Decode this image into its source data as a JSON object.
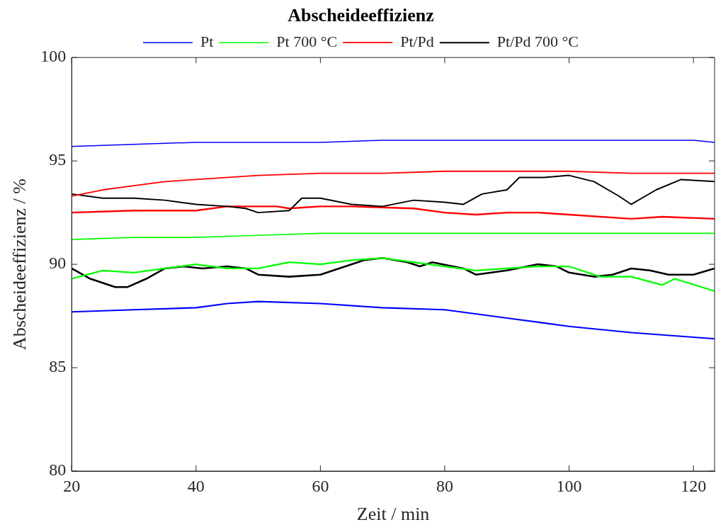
{
  "chart_data": {
    "type": "line",
    "title": "Abscheideeffizienz",
    "xlabel": "Zeit / min",
    "ylabel": "Abscheideeffizienz / %",
    "xlim": [
      20,
      123.4
    ],
    "xticks": [
      20,
      40,
      60,
      80,
      100,
      120
    ],
    "ylim": [
      80,
      100
    ],
    "yticks": [
      80,
      85,
      90,
      95,
      100
    ],
    "grid": false,
    "legend": "top",
    "marker": "none",
    "line_style": "solid",
    "series": [
      {
        "name": "Pt",
        "color": "#0000ff",
        "x": [
          20,
          30,
          40,
          50,
          60,
          70,
          80,
          90,
          100,
          110,
          120,
          123.4
        ],
        "values": [
          95.7,
          95.8,
          95.9,
          95.9,
          95.9,
          96.0,
          96.0,
          96.0,
          96.0,
          96.0,
          96.0,
          95.9
        ]
      },
      {
        "name": "Pt 700 °C",
        "color": "#00ff00",
        "x": [
          20,
          30,
          40,
          50,
          60,
          70,
          80,
          90,
          100,
          110,
          123.4
        ],
        "values": [
          91.2,
          91.3,
          91.3,
          91.4,
          91.5,
          91.5,
          91.5,
          91.5,
          91.5,
          91.5,
          91.5
        ]
      },
      {
        "name": "Pt/Pd",
        "color": "#ff0000",
        "x": [
          20,
          25,
          30,
          35,
          40,
          50,
          60,
          70,
          80,
          90,
          100,
          110,
          123.4
        ],
        "values": [
          93.3,
          93.6,
          93.8,
          94.0,
          94.1,
          94.3,
          94.4,
          94.4,
          94.5,
          94.5,
          94.5,
          94.4,
          94.4
        ]
      },
      {
        "name": "Pt/Pd 700 °C",
        "color": "#000000",
        "x": [
          20,
          25,
          30,
          35,
          40,
          45,
          48,
          50,
          55,
          57,
          60,
          65,
          70,
          75,
          80,
          83,
          86,
          90,
          92,
          96,
          100,
          104,
          108,
          110,
          114,
          118,
          123.4
        ],
        "values": [
          93.4,
          93.2,
          93.2,
          93.1,
          92.9,
          92.8,
          92.7,
          92.5,
          92.6,
          93.2,
          93.2,
          92.9,
          92.8,
          93.1,
          93.0,
          92.9,
          93.4,
          93.6,
          94.2,
          94.2,
          94.3,
          94.0,
          93.3,
          92.9,
          93.6,
          94.1,
          94.0
        ]
      },
      {
        "color": "#0000ff",
        "x": [
          20,
          30,
          40,
          45,
          50,
          60,
          70,
          80,
          90,
          100,
          110,
          123.4
        ],
        "values": [
          87.7,
          87.8,
          87.9,
          88.1,
          88.2,
          88.1,
          87.9,
          87.8,
          87.4,
          87.0,
          86.7,
          86.4
        ]
      },
      {
        "color": "#00ff00",
        "x": [
          20,
          25,
          30,
          35,
          40,
          45,
          50,
          55,
          60,
          65,
          70,
          75,
          80,
          85,
          90,
          95,
          100,
          105,
          110,
          115,
          117,
          123.4
        ],
        "values": [
          89.3,
          89.7,
          89.6,
          89.8,
          90.0,
          89.8,
          89.8,
          90.1,
          90.0,
          90.2,
          90.3,
          90.1,
          89.9,
          89.7,
          89.8,
          89.9,
          89.9,
          89.4,
          89.4,
          89.0,
          89.3,
          88.7
        ]
      },
      {
        "color": "#ff0000",
        "x": [
          20,
          30,
          40,
          45,
          53,
          55,
          60,
          65,
          75,
          80,
          85,
          90,
          95,
          100,
          110,
          115,
          123.4
        ],
        "values": [
          92.5,
          92.6,
          92.6,
          92.8,
          92.8,
          92.7,
          92.8,
          92.8,
          92.7,
          92.5,
          92.4,
          92.5,
          92.5,
          92.4,
          92.2,
          92.3,
          92.2
        ]
      },
      {
        "color": "#000000",
        "x": [
          20,
          23,
          27,
          29,
          32,
          35,
          38,
          41,
          45,
          48,
          50,
          55,
          60,
          63,
          67,
          70,
          74,
          76,
          78,
          83,
          85,
          90,
          95,
          98,
          100,
          104,
          107,
          110,
          113,
          116,
          120,
          123.4
        ],
        "values": [
          89.8,
          89.3,
          88.9,
          88.9,
          89.3,
          89.8,
          89.9,
          89.8,
          89.9,
          89.8,
          89.5,
          89.4,
          89.5,
          89.8,
          90.2,
          90.3,
          90.1,
          89.9,
          90.1,
          89.8,
          89.5,
          89.7,
          90.0,
          89.9,
          89.6,
          89.4,
          89.5,
          89.8,
          89.7,
          89.5,
          89.5,
          89.8
        ]
      }
    ]
  }
}
